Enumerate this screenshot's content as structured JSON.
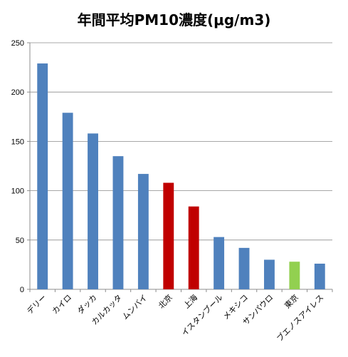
{
  "chart_data": {
    "type": "bar",
    "title": "年間平均PM10濃度(μg/m3)",
    "xlabel": "",
    "ylabel": "",
    "ylim": [
      0,
      250
    ],
    "yticks": [
      0,
      50,
      100,
      150,
      200,
      250
    ],
    "grid": true,
    "categories": [
      "デリー",
      "カイロ",
      "ダッカ",
      "カルカッタ",
      "ムンバイ",
      "北京",
      "上海",
      "イスタンブール",
      "メキシコ",
      "サンパウロ",
      "東京",
      "ブエノスアイレス"
    ],
    "values": [
      229,
      179,
      158,
      135,
      117,
      108,
      84,
      53,
      42,
      30,
      28,
      26
    ],
    "colors": [
      "#4f81bd",
      "#4f81bd",
      "#4f81bd",
      "#4f81bd",
      "#4f81bd",
      "#c00000",
      "#c00000",
      "#4f81bd",
      "#4f81bd",
      "#4f81bd",
      "#92d050",
      "#4f81bd"
    ]
  }
}
